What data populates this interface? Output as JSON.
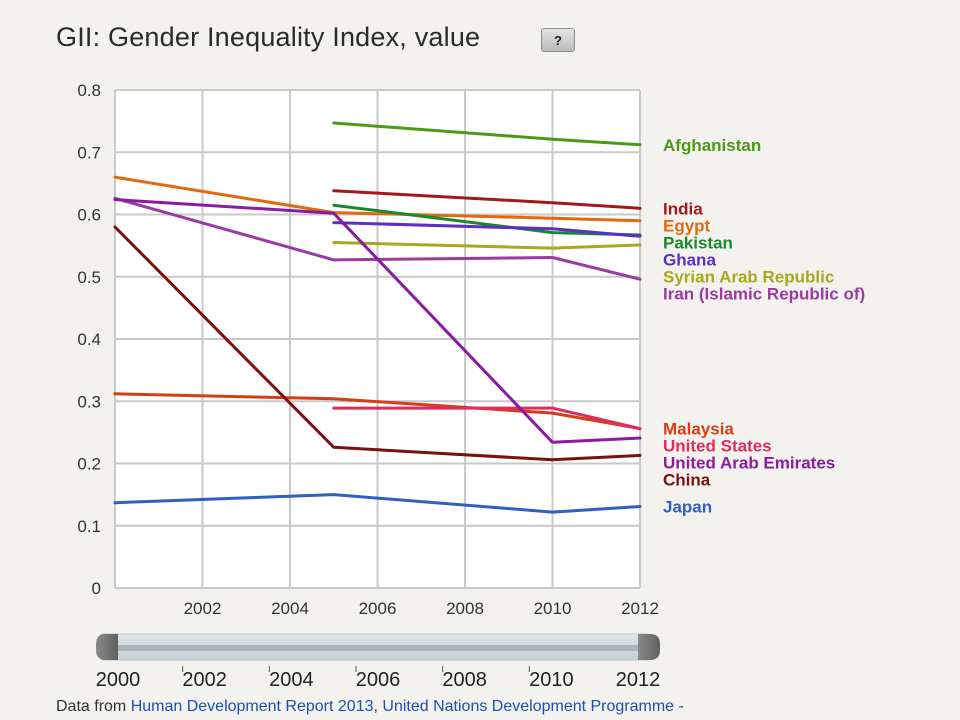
{
  "header": {
    "title": "GII: Gender Inequality Index, value",
    "help_label": "?"
  },
  "footer": {
    "prefix": "Data from ",
    "link1": "Human Development Report 2013",
    "sep": ", ",
    "link2": "United Nations Development Programme -"
  },
  "slider": {
    "labels": [
      "2000",
      "2002",
      "2004",
      "2006",
      "2008",
      "2010",
      "2012"
    ],
    "range": [
      2000,
      2012
    ]
  },
  "chart_data": {
    "type": "line",
    "title": "GII: Gender Inequality Index, value",
    "xlabel": "",
    "ylabel": "",
    "xlim": [
      2000,
      2012
    ],
    "ylim": [
      0,
      0.8
    ],
    "x_ticks": [
      2002,
      2004,
      2006,
      2008,
      2010,
      2012
    ],
    "y_ticks": [
      0,
      0.1,
      0.2,
      0.3,
      0.4,
      0.5,
      0.6,
      0.7,
      0.8
    ],
    "y_tick_labels": [
      "0",
      "0.1",
      "0.2",
      "0.3",
      "0.4",
      "0.5",
      "0.6",
      "0.7",
      "0.8"
    ],
    "grid": true,
    "legend": "right",
    "series": [
      {
        "name": "Afghanistan",
        "color": "#4a9a14",
        "x": [
          2005,
          2010,
          2012
        ],
        "values": [
          0.747,
          0.721,
          0.712
        ]
      },
      {
        "name": "India",
        "color": "#a3181a",
        "x": [
          2005,
          2010,
          2012
        ],
        "values": [
          0.638,
          0.619,
          0.61
        ]
      },
      {
        "name": "Egypt",
        "color": "#e06a10",
        "x": [
          2000,
          2005,
          2010,
          2012
        ],
        "values": [
          0.66,
          0.603,
          0.594,
          0.59
        ]
      },
      {
        "name": "Pakistan",
        "color": "#168a2a",
        "x": [
          2005,
          2010,
          2012
        ],
        "values": [
          0.615,
          0.571,
          0.567
        ]
      },
      {
        "name": "Ghana",
        "color": "#5d2fc4",
        "x": [
          2005,
          2010,
          2012
        ],
        "values": [
          0.587,
          0.577,
          0.565
        ]
      },
      {
        "name": "Syrian Arab Republic",
        "color": "#a8a81a",
        "x": [
          2005,
          2010,
          2012
        ],
        "values": [
          0.555,
          0.546,
          0.551
        ]
      },
      {
        "name": "Iran (Islamic Republic of)",
        "color": "#9b3aa3",
        "x": [
          2000,
          2005,
          2010,
          2012
        ],
        "values": [
          0.626,
          0.527,
          0.531,
          0.496
        ]
      },
      {
        "name": "Malaysia",
        "color": "#d83c14",
        "x": [
          2000,
          2005,
          2010,
          2012
        ],
        "values": [
          0.312,
          0.304,
          0.281,
          0.256
        ]
      },
      {
        "name": "United States",
        "color": "#dd2d5f",
        "x": [
          2005,
          2010,
          2012
        ],
        "values": [
          0.289,
          0.289,
          0.256
        ]
      },
      {
        "name": "United Arab Emirates",
        "color": "#8a1aa3",
        "x": [
          2000,
          2005,
          2010,
          2012
        ],
        "values": [
          0.624,
          0.602,
          0.234,
          0.241
        ]
      },
      {
        "name": "China",
        "color": "#7a1010",
        "x": [
          2000,
          2005,
          2010,
          2012
        ],
        "values": [
          0.58,
          0.226,
          0.206,
          0.213
        ]
      },
      {
        "name": "Japan",
        "color": "#2f5fbf",
        "x": [
          2000,
          2005,
          2010,
          2012
        ],
        "values": [
          0.137,
          0.15,
          0.122,
          0.131
        ]
      }
    ]
  }
}
